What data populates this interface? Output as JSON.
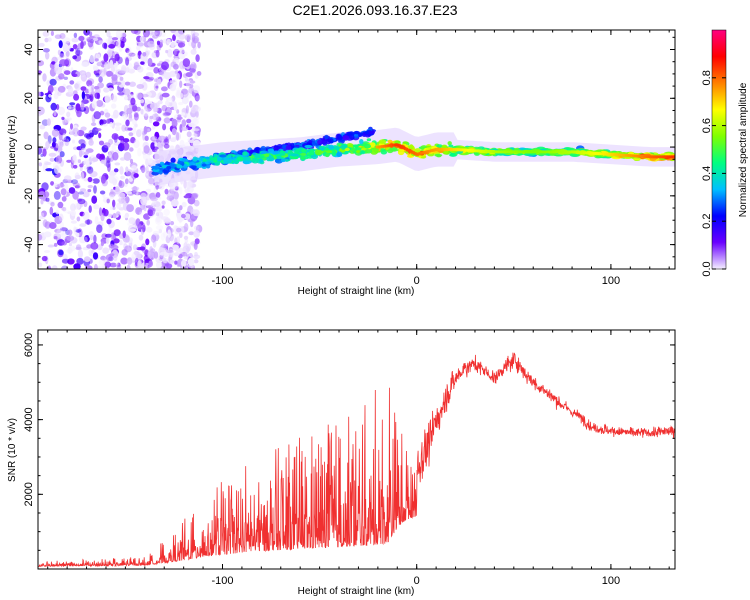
{
  "title": "C2E1.2026.093.16.37.E23",
  "chart_data": [
    {
      "type": "heatmap",
      "title": "C2E1.2026.093.16.37.E23",
      "xlabel": "Height of straight line (km)",
      "ylabel": "Frequency (Hz)",
      "xlim": [
        -195,
        133
      ],
      "ylim": [
        -50,
        48
      ],
      "xticks": [
        -100,
        0,
        100
      ],
      "xtick_labels": [
        "-100",
        "0",
        "100"
      ],
      "yticks": [
        -40,
        -20,
        0,
        20,
        40
      ],
      "ytick_labels": [
        "-40",
        "-20",
        "0",
        "20",
        "40"
      ],
      "colorbar": {
        "label": "Normalized spectral amplitude",
        "range": [
          0,
          1
        ],
        "ticks": [
          0,
          0.2,
          0.4,
          0.6,
          0.8
        ],
        "tick_labels": [
          "0.0",
          "0.2",
          "0.4",
          "0.6",
          "0.8"
        ],
        "colors": [
          "#f5f0ff",
          "#6a00ff",
          "#0000ff",
          "#00c0ff",
          "#00ff80",
          "#80ff00",
          "#ffff00",
          "#ff8000",
          "#ff0000",
          "#ff0080"
        ]
      },
      "ridge": {
        "x": [
          -135,
          -120,
          -100,
          -80,
          -60,
          -40,
          -20,
          -10,
          0,
          10,
          20,
          40,
          60,
          80,
          100,
          120,
          133
        ],
        "y": [
          -9,
          -7,
          -5,
          -4,
          -3,
          -1,
          0,
          1,
          -3,
          -1,
          -1,
          -2,
          -2,
          -2,
          -3,
          -4,
          -4
        ],
        "amplitude": [
          0.35,
          0.4,
          0.45,
          0.5,
          0.5,
          0.55,
          0.75,
          0.85,
          0.8,
          0.75,
          0.7,
          0.6,
          0.55,
          0.6,
          0.7,
          0.8,
          0.85
        ]
      },
      "noise_region": {
        "x_range": [
          -195,
          -120
        ],
        "y_range": [
          -50,
          48
        ]
      }
    },
    {
      "type": "line",
      "xlabel": "Height of straight line (km)",
      "ylabel": "SNR (10 * v/v)",
      "xlim": [
        -195,
        133
      ],
      "ylim": [
        0,
        6400
      ],
      "xticks": [
        -100,
        0,
        100
      ],
      "xtick_labels": [
        "-100",
        "0",
        "100"
      ],
      "yticks": [
        2000,
        4000,
        6000
      ],
      "ytick_labels": [
        "2000",
        "4000",
        "6000"
      ],
      "color": "#f03030",
      "series": [
        {
          "name": "SNR",
          "x": [
            -195,
            -180,
            -160,
            -140,
            -125,
            -115,
            -105,
            -95,
            -85,
            -75,
            -65,
            -55,
            -45,
            -35,
            -25,
            -20,
            -15,
            -10,
            -5,
            0,
            5,
            10,
            15,
            20,
            25,
            30,
            35,
            40,
            45,
            50,
            55,
            60,
            65,
            70,
            75,
            80,
            85,
            90,
            95,
            100,
            110,
            120,
            133
          ],
          "values": [
            120,
            150,
            150,
            180,
            350,
            500,
            650,
            750,
            850,
            900,
            950,
            1000,
            1050,
            1100,
            1150,
            1200,
            1250,
            2000,
            2400,
            2600,
            3200,
            3900,
            4600,
            5100,
            5400,
            5500,
            5300,
            5100,
            5400,
            5600,
            5300,
            5000,
            4800,
            4600,
            4400,
            4200,
            4050,
            3800,
            3750,
            3700,
            3650,
            3650,
            3700
          ],
          "spread": [
            80,
            100,
            120,
            150,
            500,
            900,
            1200,
            1400,
            1600,
            1700,
            1800,
            2000,
            2100,
            2200,
            2400,
            2700,
            3500,
            1800,
            1500,
            1300,
            1100,
            1000,
            800,
            600,
            500,
            450,
            400,
            400,
            450,
            500,
            450,
            400,
            350,
            350,
            350,
            300,
            300,
            300,
            300,
            300,
            300,
            300,
            300
          ]
        }
      ]
    }
  ]
}
